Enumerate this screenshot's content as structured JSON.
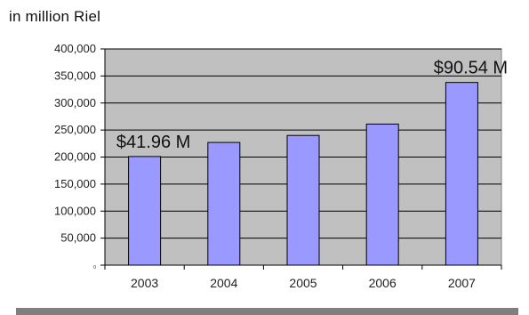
{
  "caption": "in million Riel",
  "chart_data": {
    "type": "bar",
    "categories": [
      "2003",
      "2004",
      "2005",
      "2006",
      "2007"
    ],
    "values": [
      201000,
      227000,
      240000,
      261000,
      338000
    ],
    "ylim": [
      0,
      400000
    ],
    "yticks": [
      0,
      50000,
      100000,
      150000,
      200000,
      250000,
      300000,
      350000,
      400000
    ],
    "ytick_labels": [
      "0",
      "50,000",
      "100,000",
      "150,000",
      "200,000",
      "250,000",
      "300,000",
      "350,000",
      "400,000"
    ],
    "grid": true,
    "annotations": [
      {
        "category": "2003",
        "text": "$41.96 M"
      },
      {
        "category": "2007",
        "text": "$90.54 M"
      }
    ],
    "colors": {
      "plot_background": "#c0c0c0",
      "bar_fill": "#9999ff",
      "bar_stroke": "#000000",
      "gridline": "#000000",
      "frame": "#808080"
    }
  }
}
